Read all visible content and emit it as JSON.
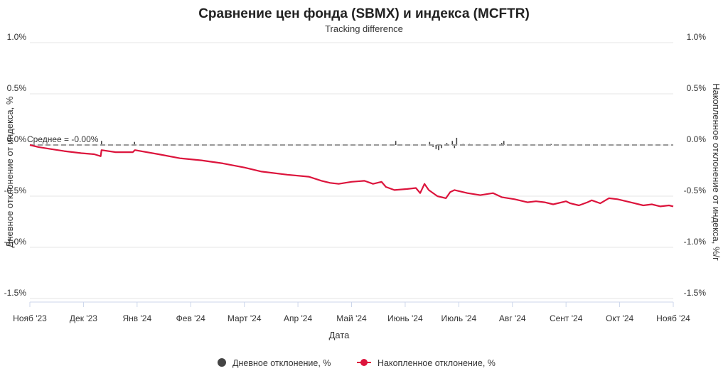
{
  "chart_data": {
    "type": "line",
    "title": "Сравнение цен фонда (SBMX) и индекса (MCFTR)",
    "subtitle": "Tracking difference",
    "xlabel": "Дата",
    "ylabel_left": "Дневное отклонение от индекса, %",
    "ylabel_right": "Накопленное отклонение от индекса, %/г",
    "ylim": [
      -1.5,
      1.0
    ],
    "y_ticks": [
      "1.0%",
      "0.5%",
      "0.0%",
      "-0.5%",
      "-1.0%",
      "-1.5%"
    ],
    "y_tick_values": [
      1.0,
      0.5,
      0.0,
      -0.5,
      -1.0,
      -1.5
    ],
    "x_ticks": [
      "Нояб '23",
      "Дек '23",
      "Янв '24",
      "Фев '24",
      "Март '24",
      "Апр '24",
      "Май '24",
      "Июнь '24",
      "Июль '24",
      "Авг '24",
      "Сент '24",
      "Окт '24",
      "Нояб '24"
    ],
    "x_tick_months": [
      0,
      1,
      2,
      3,
      4,
      5,
      6,
      7,
      8,
      9,
      10,
      11,
      12
    ],
    "mean_label": "Среднее = -0.00%",
    "mean_value": 0.0,
    "legend_position": "bottom",
    "series": [
      {
        "name": "Дневное отклонение, %",
        "type": "bar",
        "color": "#444444",
        "points": [
          [
            1.67,
            0.04
          ],
          [
            2.44,
            0.03
          ],
          [
            8.53,
            0.04
          ],
          [
            9.32,
            0.03
          ],
          [
            9.4,
            -0.02
          ],
          [
            9.47,
            -0.04
          ],
          [
            9.53,
            -0.05
          ],
          [
            9.6,
            -0.03
          ],
          [
            9.72,
            0.02
          ],
          [
            9.85,
            0.04
          ],
          [
            9.9,
            -0.03
          ],
          [
            9.95,
            0.07
          ],
          [
            10.1,
            0.01
          ],
          [
            10.25,
            0.01
          ],
          [
            11.0,
            0.02
          ],
          [
            11.05,
            0.04
          ],
          [
            12.15,
            0.01
          ]
        ]
      },
      {
        "name": "Накопленное отклонение, %",
        "type": "line",
        "color": "#dc143c",
        "points": [
          [
            0.0,
            0.0
          ],
          [
            0.2,
            -0.02
          ],
          [
            0.5,
            -0.04
          ],
          [
            0.8,
            -0.06
          ],
          [
            1.2,
            -0.08
          ],
          [
            1.5,
            -0.09
          ],
          [
            1.65,
            -0.11
          ],
          [
            1.67,
            -0.05
          ],
          [
            2.0,
            -0.07
          ],
          [
            2.4,
            -0.07
          ],
          [
            2.45,
            -0.05
          ],
          [
            3.0,
            -0.09
          ],
          [
            3.5,
            -0.13
          ],
          [
            4.0,
            -0.15
          ],
          [
            4.5,
            -0.18
          ],
          [
            5.0,
            -0.22
          ],
          [
            5.4,
            -0.26
          ],
          [
            6.0,
            -0.29
          ],
          [
            6.5,
            -0.31
          ],
          [
            6.8,
            -0.35
          ],
          [
            7.0,
            -0.37
          ],
          [
            7.2,
            -0.38
          ],
          [
            7.5,
            -0.36
          ],
          [
            7.8,
            -0.35
          ],
          [
            8.0,
            -0.38
          ],
          [
            8.2,
            -0.36
          ],
          [
            8.3,
            -0.41
          ],
          [
            8.5,
            -0.44
          ],
          [
            8.8,
            -0.43
          ],
          [
            9.0,
            -0.42
          ],
          [
            9.1,
            -0.47
          ],
          [
            9.2,
            -0.38
          ],
          [
            9.3,
            -0.44
          ],
          [
            9.5,
            -0.5
          ],
          [
            9.7,
            -0.52
          ],
          [
            9.8,
            -0.46
          ],
          [
            9.9,
            -0.44
          ],
          [
            10.2,
            -0.47
          ],
          [
            10.5,
            -0.49
          ],
          [
            10.8,
            -0.47
          ],
          [
            11.0,
            -0.51
          ],
          [
            11.3,
            -0.53
          ],
          [
            11.6,
            -0.56
          ],
          [
            11.8,
            -0.55
          ],
          [
            12.0,
            -0.56
          ],
          [
            12.2,
            -0.58
          ],
          [
            12.5,
            -0.55
          ],
          [
            12.6,
            -0.57
          ],
          [
            12.8,
            -0.59
          ],
          [
            13.0,
            -0.56
          ],
          [
            13.1,
            -0.54
          ],
          [
            13.3,
            -0.57
          ],
          [
            13.5,
            -0.52
          ],
          [
            13.7,
            -0.53
          ],
          [
            14.0,
            -0.56
          ],
          [
            14.3,
            -0.59
          ],
          [
            14.5,
            -0.58
          ],
          [
            14.7,
            -0.6
          ],
          [
            14.9,
            -0.59
          ],
          [
            15.0,
            -0.6
          ]
        ]
      }
    ]
  }
}
